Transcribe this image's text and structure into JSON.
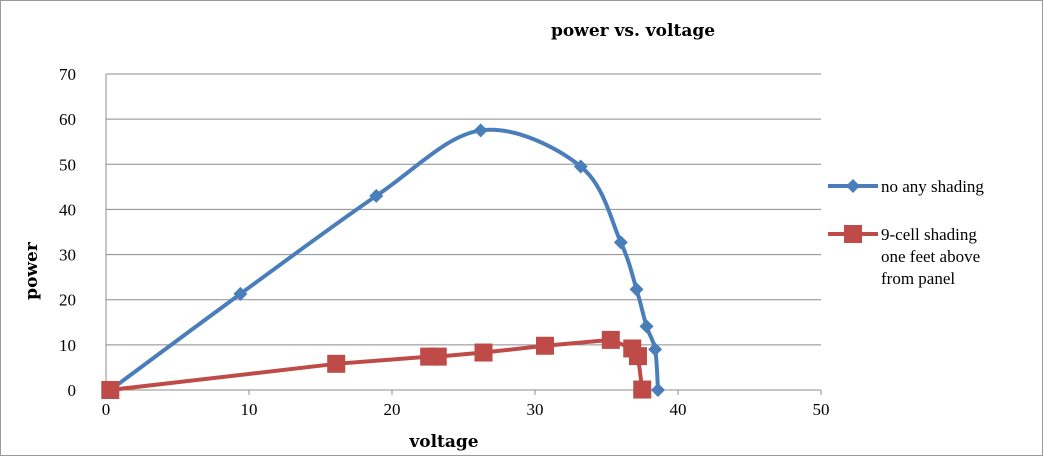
{
  "chart_data": {
    "type": "scatter",
    "title": "power vs. voltage",
    "xlabel": "voltage",
    "ylabel": "power",
    "xlim": [
      0,
      50
    ],
    "ylim": [
      0,
      70
    ],
    "xticks": [
      0,
      10,
      20,
      30,
      40,
      50
    ],
    "yticks": [
      0,
      10,
      20,
      30,
      40,
      50,
      60,
      70
    ],
    "grid": "horizontal",
    "legend_position": "right",
    "series": [
      {
        "name": "no any shading",
        "color": "#4a7ebb",
        "marker": "diamond",
        "smooth": true,
        "points": [
          [
            0.3,
            0
          ],
          [
            9.4,
            21.3
          ],
          [
            18.9,
            43
          ],
          [
            26.2,
            57.5
          ],
          [
            33.2,
            49.5
          ],
          [
            36.0,
            32.7
          ],
          [
            37.1,
            22.3
          ],
          [
            37.8,
            14.1
          ],
          [
            38.4,
            9
          ],
          [
            38.6,
            0
          ]
        ]
      },
      {
        "name": "9-cell shading one feet above from panel",
        "legend_lines": [
          "9-cell shading",
          "one feet above",
          " from panel"
        ],
        "color": "#be4b48",
        "marker": "square",
        "smooth": false,
        "points": [
          [
            0.3,
            0
          ],
          [
            16.1,
            5.8
          ],
          [
            22.6,
            7.4
          ],
          [
            23.2,
            7.4
          ],
          [
            26.4,
            8.3
          ],
          [
            30.7,
            9.8
          ],
          [
            35.3,
            11.1
          ],
          [
            36.8,
            9.2
          ],
          [
            37.2,
            7.5
          ],
          [
            37.5,
            0.1
          ]
        ]
      }
    ]
  }
}
